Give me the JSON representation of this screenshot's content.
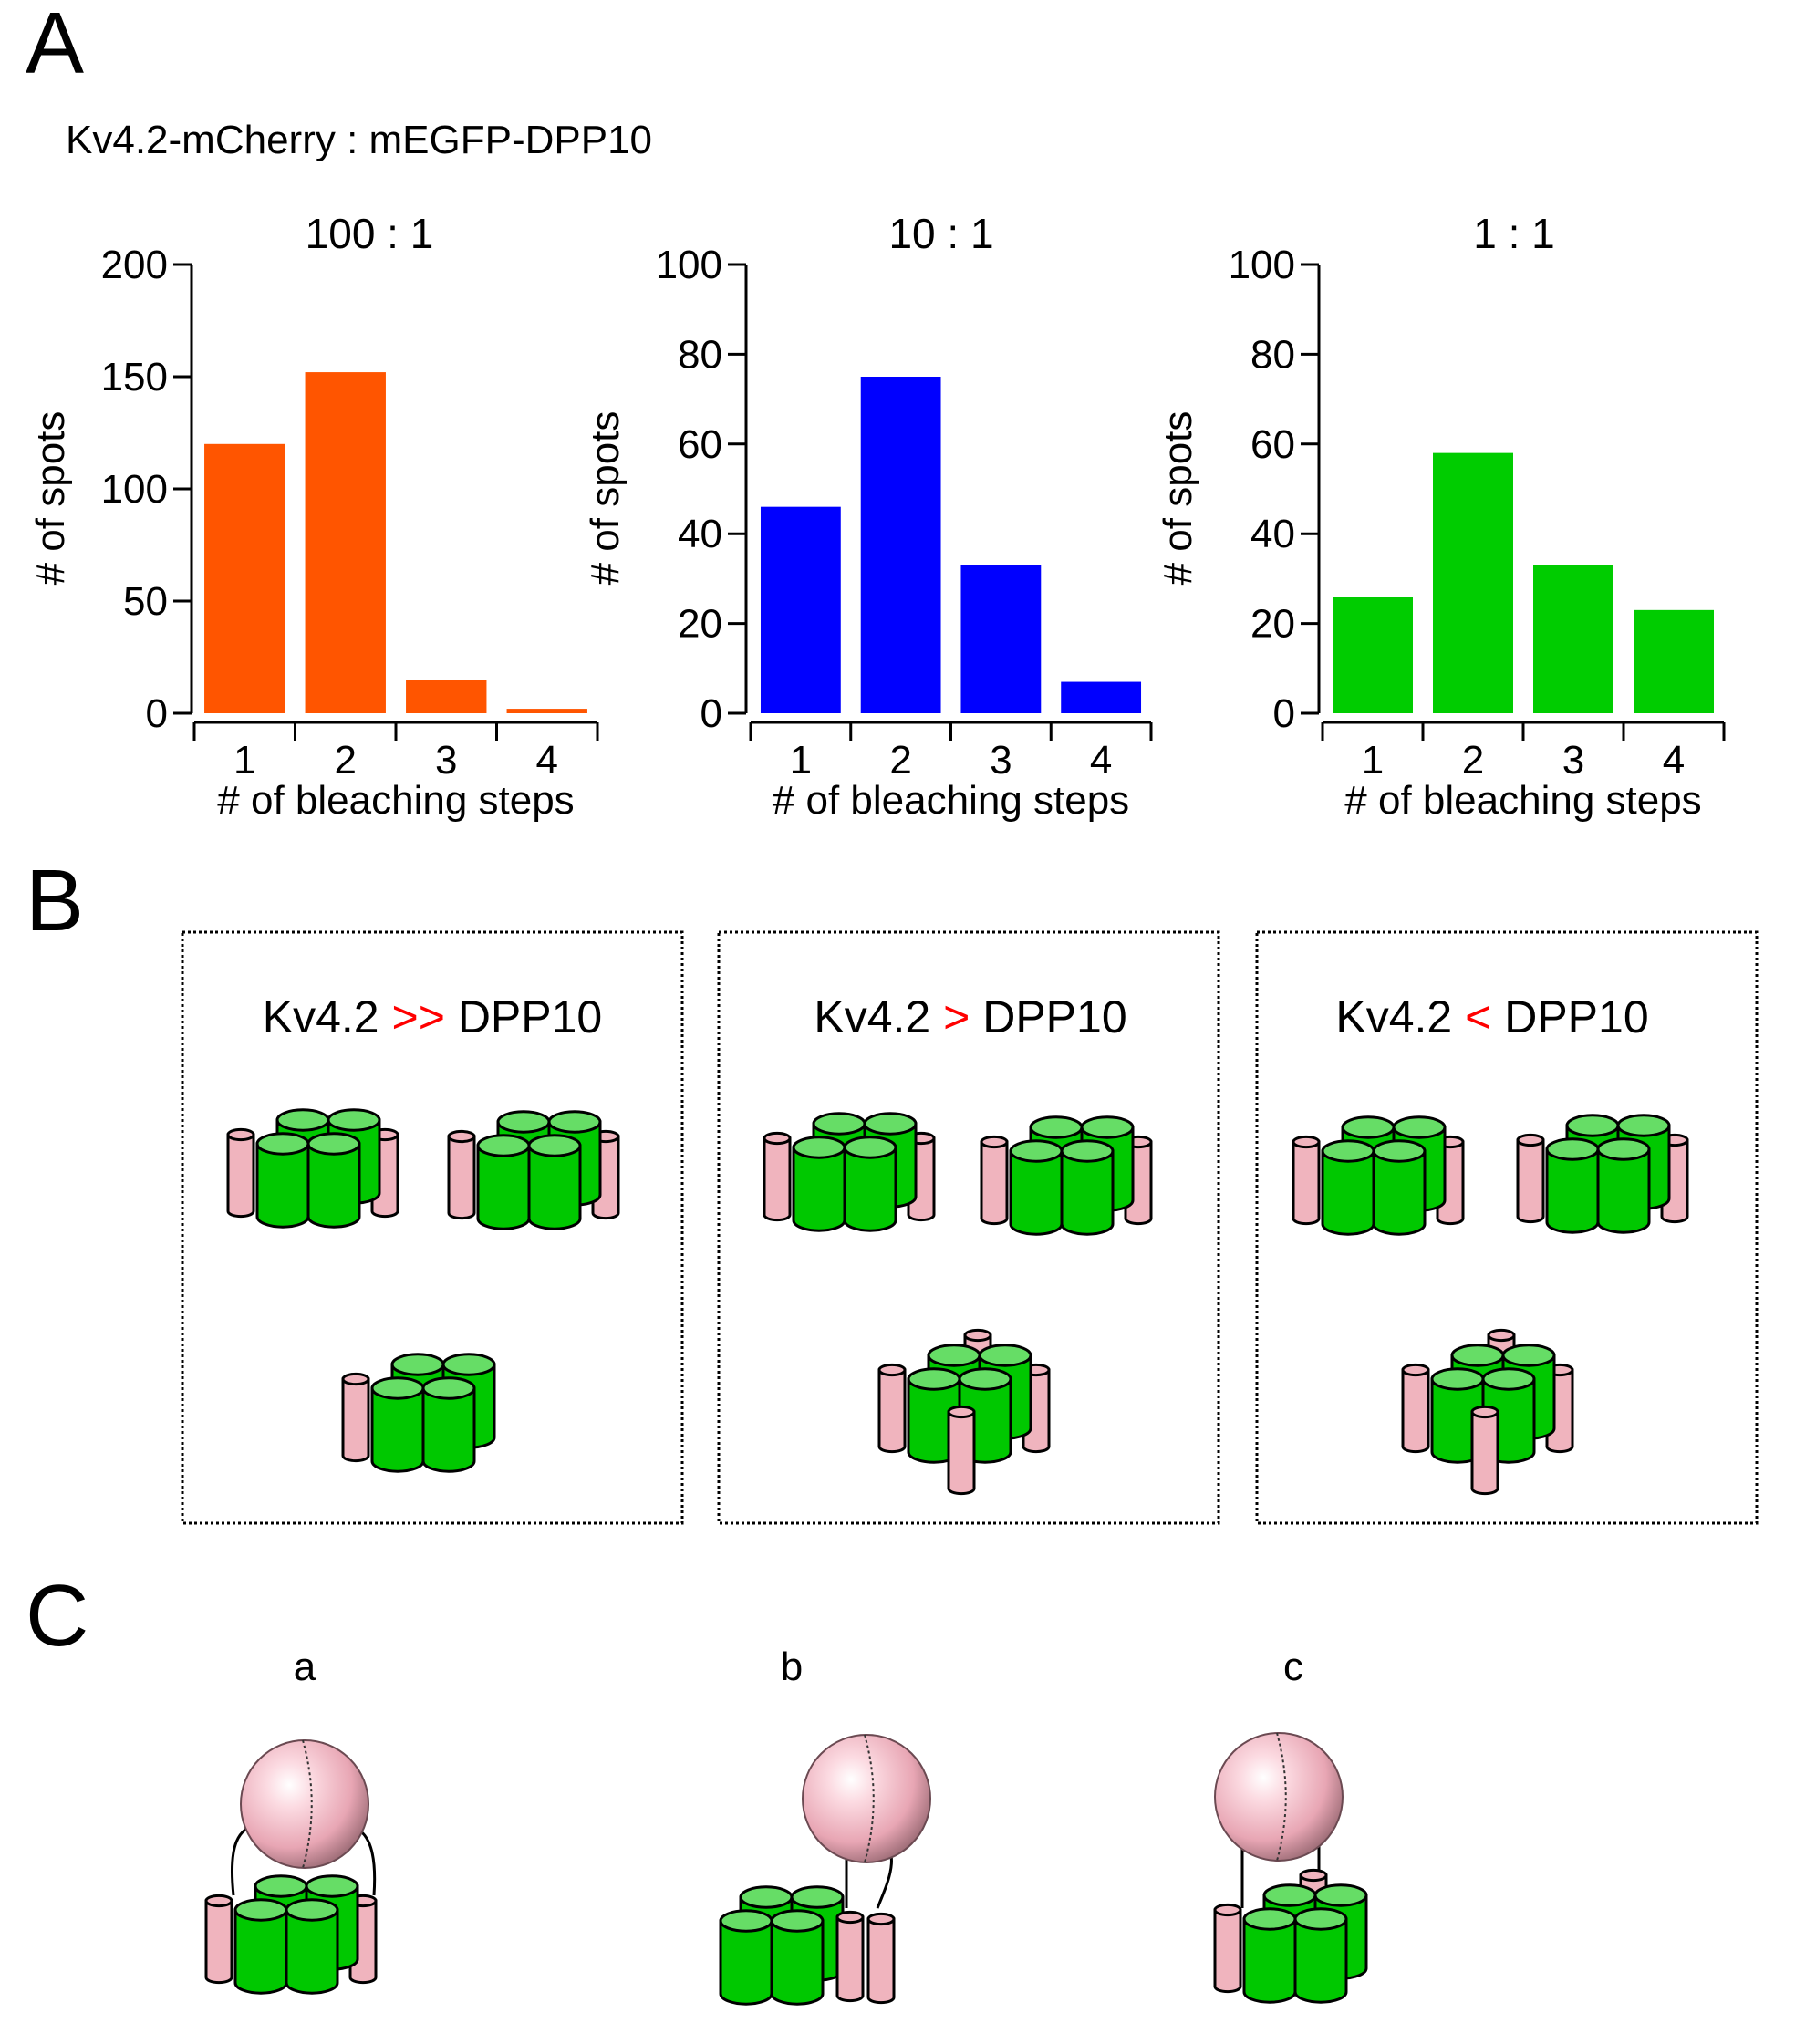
{
  "panels": {
    "a_letter": "A",
    "b_letter": "B",
    "c_letter": "C"
  },
  "panel_a": {
    "subtitle": "Kv4.2-mCherry : mEGFP-DPP10"
  },
  "chart_data": [
    {
      "type": "bar",
      "title": "100 : 1",
      "xlabel": "# of bleaching steps",
      "ylabel": "# of spots",
      "categories": [
        "1",
        "2",
        "3",
        "4"
      ],
      "values": [
        120,
        152,
        15,
        2
      ],
      "ylim": [
        0,
        200
      ],
      "yticks": [
        "0",
        "50",
        "100",
        "150",
        "200"
      ],
      "color": "#ff5500"
    },
    {
      "type": "bar",
      "title": "10 : 1",
      "xlabel": "# of bleaching steps",
      "ylabel": "# of spots",
      "categories": [
        "1",
        "2",
        "3",
        "4"
      ],
      "values": [
        46,
        75,
        33,
        7
      ],
      "ylim": [
        0,
        100
      ],
      "yticks": [
        "0",
        "20",
        "40",
        "60",
        "80",
        "100"
      ],
      "color": "#0000ff"
    },
    {
      "type": "bar",
      "title": "1 : 1",
      "xlabel": "# of bleaching steps",
      "ylabel": "# of spots",
      "categories": [
        "1",
        "2",
        "3",
        "4"
      ],
      "values": [
        26,
        58,
        33,
        23
      ],
      "ylim": [
        0,
        100
      ],
      "yticks": [
        "0",
        "20",
        "40",
        "60",
        "80",
        "100"
      ],
      "color": "#00cc00"
    }
  ],
  "panel_b": {
    "boxes": [
      {
        "left": "Kv4.2",
        "op": ">>",
        "right": "DPP10"
      },
      {
        "left": "Kv4.2",
        "op": ">",
        "right": "DPP10"
      },
      {
        "left": "Kv4.2",
        "op": "<",
        "right": "DPP10"
      }
    ],
    "op_color": "#ff0000"
  },
  "panel_c": {
    "labels": [
      "a",
      "b",
      "c"
    ]
  },
  "colors": {
    "kv_green": "#00c800",
    "kv_green_top": "#66dd66",
    "dpp_pink": "#f0b4be",
    "sphere_pink": "#f2b8c4"
  }
}
